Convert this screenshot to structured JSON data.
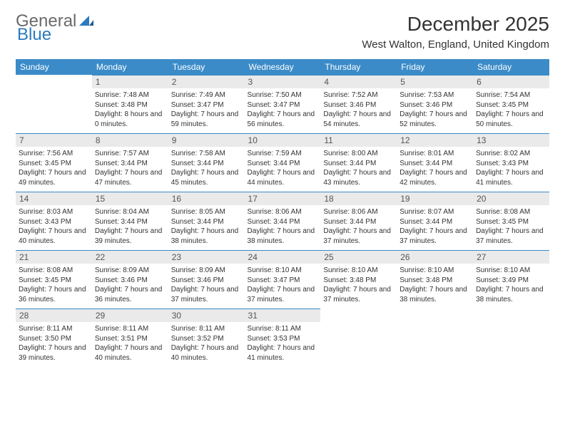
{
  "logo": {
    "gray": "General",
    "blue": "Blue",
    "tri_color": "#2b7bbf"
  },
  "title": "December 2025",
  "location": "West Walton, England, United Kingdom",
  "colors": {
    "header_bg": "#3b8bc8",
    "header_fg": "#ffffff",
    "daynum_bg": "#eaeaea",
    "daynum_fg": "#555555",
    "rule": "#3b8bc8",
    "text": "#333333"
  },
  "day_headers": [
    "Sunday",
    "Monday",
    "Tuesday",
    "Wednesday",
    "Thursday",
    "Friday",
    "Saturday"
  ],
  "start_offset": 1,
  "days": [
    {
      "n": 1,
      "sr": "7:48 AM",
      "ss": "3:48 PM",
      "dl": "8 hours and 0 minutes."
    },
    {
      "n": 2,
      "sr": "7:49 AM",
      "ss": "3:47 PM",
      "dl": "7 hours and 59 minutes."
    },
    {
      "n": 3,
      "sr": "7:50 AM",
      "ss": "3:47 PM",
      "dl": "7 hours and 56 minutes."
    },
    {
      "n": 4,
      "sr": "7:52 AM",
      "ss": "3:46 PM",
      "dl": "7 hours and 54 minutes."
    },
    {
      "n": 5,
      "sr": "7:53 AM",
      "ss": "3:46 PM",
      "dl": "7 hours and 52 minutes."
    },
    {
      "n": 6,
      "sr": "7:54 AM",
      "ss": "3:45 PM",
      "dl": "7 hours and 50 minutes."
    },
    {
      "n": 7,
      "sr": "7:56 AM",
      "ss": "3:45 PM",
      "dl": "7 hours and 49 minutes."
    },
    {
      "n": 8,
      "sr": "7:57 AM",
      "ss": "3:44 PM",
      "dl": "7 hours and 47 minutes."
    },
    {
      "n": 9,
      "sr": "7:58 AM",
      "ss": "3:44 PM",
      "dl": "7 hours and 45 minutes."
    },
    {
      "n": 10,
      "sr": "7:59 AM",
      "ss": "3:44 PM",
      "dl": "7 hours and 44 minutes."
    },
    {
      "n": 11,
      "sr": "8:00 AM",
      "ss": "3:44 PM",
      "dl": "7 hours and 43 minutes."
    },
    {
      "n": 12,
      "sr": "8:01 AM",
      "ss": "3:44 PM",
      "dl": "7 hours and 42 minutes."
    },
    {
      "n": 13,
      "sr": "8:02 AM",
      "ss": "3:43 PM",
      "dl": "7 hours and 41 minutes."
    },
    {
      "n": 14,
      "sr": "8:03 AM",
      "ss": "3:43 PM",
      "dl": "7 hours and 40 minutes."
    },
    {
      "n": 15,
      "sr": "8:04 AM",
      "ss": "3:44 PM",
      "dl": "7 hours and 39 minutes."
    },
    {
      "n": 16,
      "sr": "8:05 AM",
      "ss": "3:44 PM",
      "dl": "7 hours and 38 minutes."
    },
    {
      "n": 17,
      "sr": "8:06 AM",
      "ss": "3:44 PM",
      "dl": "7 hours and 38 minutes."
    },
    {
      "n": 18,
      "sr": "8:06 AM",
      "ss": "3:44 PM",
      "dl": "7 hours and 37 minutes."
    },
    {
      "n": 19,
      "sr": "8:07 AM",
      "ss": "3:44 PM",
      "dl": "7 hours and 37 minutes."
    },
    {
      "n": 20,
      "sr": "8:08 AM",
      "ss": "3:45 PM",
      "dl": "7 hours and 37 minutes."
    },
    {
      "n": 21,
      "sr": "8:08 AM",
      "ss": "3:45 PM",
      "dl": "7 hours and 36 minutes."
    },
    {
      "n": 22,
      "sr": "8:09 AM",
      "ss": "3:46 PM",
      "dl": "7 hours and 36 minutes."
    },
    {
      "n": 23,
      "sr": "8:09 AM",
      "ss": "3:46 PM",
      "dl": "7 hours and 37 minutes."
    },
    {
      "n": 24,
      "sr": "8:10 AM",
      "ss": "3:47 PM",
      "dl": "7 hours and 37 minutes."
    },
    {
      "n": 25,
      "sr": "8:10 AM",
      "ss": "3:48 PM",
      "dl": "7 hours and 37 minutes."
    },
    {
      "n": 26,
      "sr": "8:10 AM",
      "ss": "3:48 PM",
      "dl": "7 hours and 38 minutes."
    },
    {
      "n": 27,
      "sr": "8:10 AM",
      "ss": "3:49 PM",
      "dl": "7 hours and 38 minutes."
    },
    {
      "n": 28,
      "sr": "8:11 AM",
      "ss": "3:50 PM",
      "dl": "7 hours and 39 minutes."
    },
    {
      "n": 29,
      "sr": "8:11 AM",
      "ss": "3:51 PM",
      "dl": "7 hours and 40 minutes."
    },
    {
      "n": 30,
      "sr": "8:11 AM",
      "ss": "3:52 PM",
      "dl": "7 hours and 40 minutes."
    },
    {
      "n": 31,
      "sr": "8:11 AM",
      "ss": "3:53 PM",
      "dl": "7 hours and 41 minutes."
    }
  ],
  "labels": {
    "sunrise": "Sunrise:",
    "sunset": "Sunset:",
    "daylight": "Daylight:"
  }
}
